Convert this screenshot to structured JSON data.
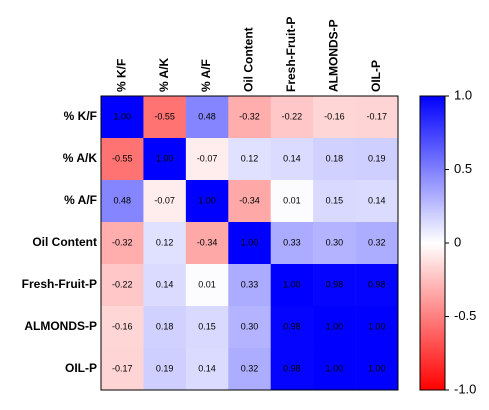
{
  "chart_data": {
    "type": "heatmap",
    "x": [
      "% K/F",
      "% A/K",
      "% A/F",
      "Oil Content",
      "Fresh-Fruit-P",
      "ALMONDS-P",
      "OIL-P"
    ],
    "y": [
      "% K/F",
      "% A/K",
      "% A/F",
      "Oil Content",
      "Fresh-Fruit-P",
      "ALMONDS-P",
      "OIL-P"
    ],
    "values": [
      [
        1.0,
        -0.55,
        0.48,
        -0.32,
        -0.22,
        -0.16,
        -0.17
      ],
      [
        -0.55,
        1.0,
        -0.07,
        0.12,
        0.14,
        0.18,
        0.19
      ],
      [
        0.48,
        -0.07,
        1.0,
        -0.34,
        0.01,
        0.15,
        0.14
      ],
      [
        -0.32,
        0.12,
        -0.34,
        1.0,
        0.33,
        0.3,
        0.32
      ],
      [
        -0.22,
        0.14,
        0.01,
        0.33,
        1.0,
        0.98,
        0.98
      ],
      [
        -0.16,
        0.18,
        0.15,
        0.3,
        0.98,
        1.0,
        1.0
      ],
      [
        -0.17,
        0.19,
        0.14,
        0.32,
        0.98,
        1.0,
        1.0
      ]
    ],
    "value_labels": [
      [
        "1.00",
        "-0.55",
        "0.48",
        "-0.32",
        "-0.22",
        "-0.16",
        "-0.17"
      ],
      [
        "-0.55",
        "1.00",
        "-0.07",
        "0.12",
        "0.14",
        "0.18",
        "0.19"
      ],
      [
        "0.48",
        "-0.07",
        "1.00",
        "-0.34",
        "0.01",
        "0.15",
        "0.14"
      ],
      [
        "-0.32",
        "0.12",
        "-0.34",
        "1.00",
        "0.33",
        "0.30",
        "0.32"
      ],
      [
        "-0.22",
        "0.14",
        "0.01",
        "0.33",
        "1.00",
        "0.98",
        "0.98"
      ],
      [
        "-0.16",
        "0.18",
        "0.15",
        "0.30",
        "0.98",
        "1.00",
        "1.00"
      ],
      [
        "-0.17",
        "0.19",
        "0.14",
        "0.32",
        "0.98",
        "1.00",
        "1.00"
      ]
    ],
    "zlim": [
      -1,
      1
    ],
    "zticks": [
      {
        "value": 1,
        "label": "1.0"
      },
      0.5,
      0,
      -0.5,
      {
        "value": -1,
        "label": "-1.0"
      }
    ],
    "colors": [
      "#ff0000",
      "#ffffff",
      "#0000ff"
    ]
  }
}
